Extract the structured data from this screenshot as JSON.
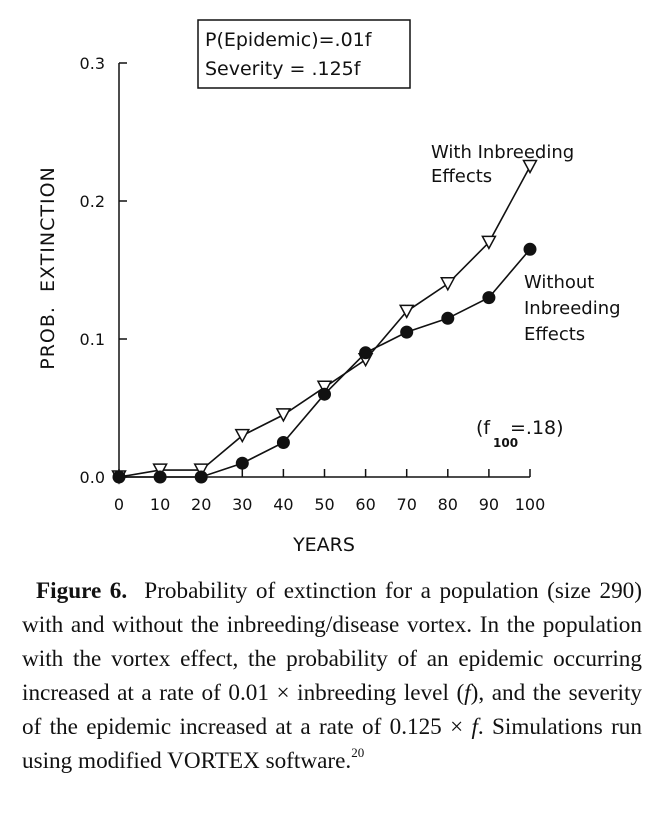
{
  "chart_data": {
    "type": "line",
    "title": "",
    "xlabel": "YEARS",
    "ylabel": "PROB.  EXTINCTION",
    "xlim": [
      0,
      100
    ],
    "ylim": [
      0.0,
      0.3
    ],
    "grid": false,
    "x": [
      0,
      10,
      20,
      30,
      40,
      50,
      60,
      70,
      80,
      90,
      100
    ],
    "x_ticks": [
      "0",
      "10",
      "20",
      "30",
      "40",
      "50",
      "60",
      "70",
      "80",
      "90",
      "100"
    ],
    "y_ticks": [
      "0.0",
      "0.1",
      "0.2",
      "0.3"
    ],
    "y_tick_values": [
      0.0,
      0.1,
      0.2,
      0.3
    ],
    "series": [
      {
        "name": "With Inbreeding Effects",
        "label_lines": [
          "With Inbreeding",
          "Effects"
        ],
        "marker": "open-triangle-down",
        "values": [
          0.0,
          0.005,
          0.005,
          0.03,
          0.045,
          0.065,
          0.085,
          0.12,
          0.14,
          0.17,
          0.225
        ]
      },
      {
        "name": "Without Inbreeding Effects",
        "label_lines": [
          "Without",
          "Inbreeding",
          "Effects"
        ],
        "marker": "filled-circle",
        "values": [
          0.0,
          0.0,
          0.0,
          0.01,
          0.025,
          0.06,
          0.09,
          0.105,
          0.115,
          0.13,
          0.165
        ]
      }
    ],
    "annotations": {
      "box_line1": "P(Epidemic)=.01f",
      "box_line2": "Severity = .125f",
      "f_note_open": "(f",
      "f_note_sub": "100",
      "f_note_close": "=.18)"
    }
  },
  "caption": {
    "label": "Figure 6.",
    "text_1": "Probability of extinction for a population (size 290) with and without the inbreeding/disease vortex. In the population with the vortex effect, the probability of an epidemic occurring increased at a rate of 0.01 × inbreeding level (",
    "f1": "f",
    "text_2": "), and the severity of the epidemic increased at a rate of 0.125 × ",
    "f2": "f",
    "text_3": ". Simulations run using modified VORTEX software.",
    "ref": "20"
  },
  "colors": {
    "ink": "#111111",
    "background": "#ffffff"
  }
}
